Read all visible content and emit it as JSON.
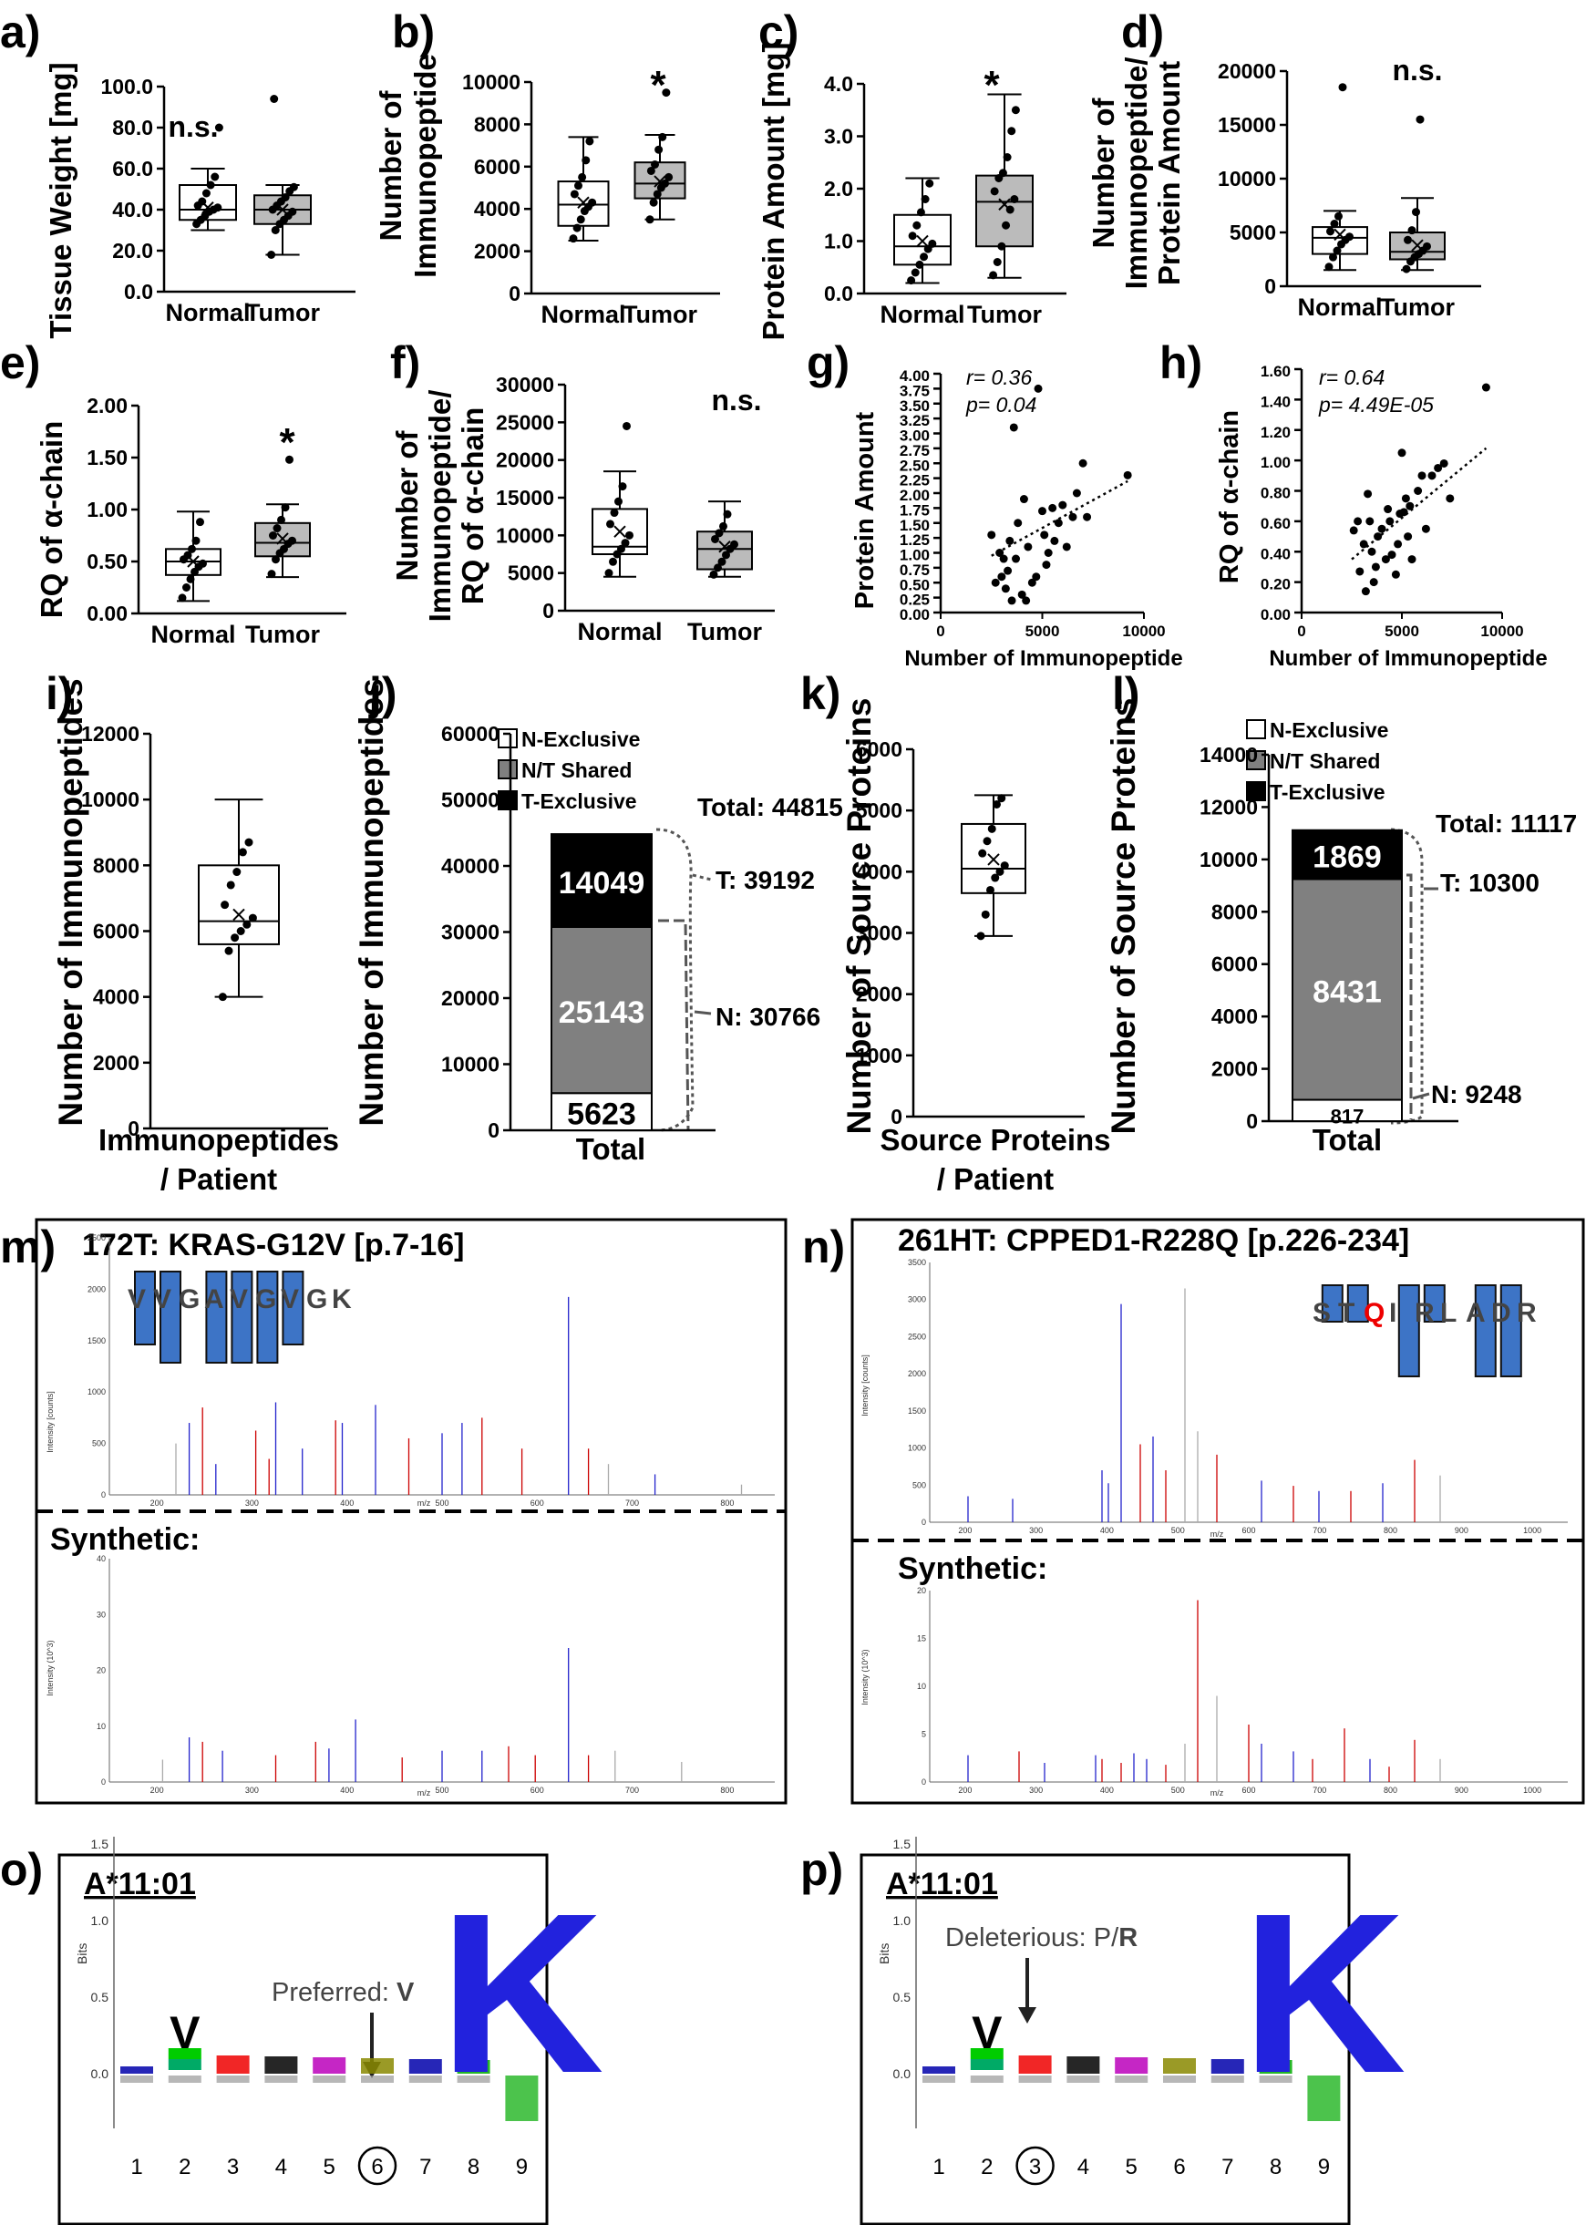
{
  "panels": {
    "a": {
      "label": "a)",
      "ylabel": "Tissue Weight [mg]",
      "ticks": [
        "0.0",
        "20.0",
        "40.0",
        "60.0",
        "80.0",
        "100.0"
      ],
      "cats": [
        "Normal",
        "Tumor"
      ],
      "sig": "n.s."
    },
    "b": {
      "label": "b)",
      "ylabel1": "Number of",
      "ylabel2": "Immunopeptide",
      "ticks": [
        "0",
        "2000",
        "4000",
        "6000",
        "8000",
        "10000"
      ],
      "cats": [
        "Normal",
        "Tumor"
      ],
      "sig": "*"
    },
    "c": {
      "label": "c)",
      "ylabel": "Protein Amount [mg]",
      "ticks": [
        "0.0",
        "1.0",
        "2.0",
        "3.0",
        "4.0"
      ],
      "cats": [
        "Normal",
        "Tumor"
      ],
      "sig": "*"
    },
    "d": {
      "label": "d)",
      "ylabel1": "Number of",
      "ylabel2": "Immunopeptide/",
      "ylabel3": "Protein Amount",
      "ticks": [
        "0",
        "5000",
        "10000",
        "15000",
        "20000"
      ],
      "cats": [
        "Normal",
        "Tumor"
      ],
      "sig": "n.s."
    },
    "e": {
      "label": "e)",
      "ylabel": "RQ of α-chain",
      "ticks": [
        "0.00",
        "0.50",
        "1.00",
        "1.50",
        "2.00"
      ],
      "cats": [
        "Normal",
        "Tumor"
      ],
      "sig": "*"
    },
    "f": {
      "label": "f)",
      "ylabel1": "Number of",
      "ylabel2": "Immunopeptide/",
      "ylabel3": "RQ of α-chain",
      "ticks": [
        "0",
        "5000",
        "10000",
        "15000",
        "20000",
        "25000",
        "30000"
      ],
      "cats": [
        "Normal",
        "Tumor"
      ],
      "sig": "n.s."
    },
    "g": {
      "label": "g)",
      "ylabel": "Protein Amount",
      "xlabel": "Number of Immunopeptide",
      "yticks": [
        "0.00",
        "0.25",
        "0.50",
        "0.75",
        "1.00",
        "1.25",
        "1.50",
        "1.75",
        "2.00",
        "2.25",
        "2.50",
        "2.75",
        "3.00",
        "3.25",
        "3.50",
        "3.75",
        "4.00"
      ],
      "xticks": [
        "0",
        "5000",
        "10000"
      ],
      "r": "r= 0.36",
      "p": "p= 0.04"
    },
    "h": {
      "label": "h)",
      "ylabel": "RQ of α-chain",
      "xlabel": "Number of Immunopeptide",
      "yticks": [
        "0.00",
        "0.20",
        "0.40",
        "0.60",
        "0.80",
        "1.00",
        "1.20",
        "1.40",
        "1.60"
      ],
      "xticks": [
        "0",
        "5000",
        "10000"
      ],
      "r": "r= 0.64",
      "p": "p= 4.49E-05"
    },
    "i": {
      "label": "i)",
      "ylabel": "Number of Immunopeptides",
      "ticks": [
        "0",
        "2000",
        "4000",
        "6000",
        "8000",
        "10000",
        "12000"
      ],
      "xlabel1": "Immunopeptides",
      "xlabel2": "/ Patient"
    },
    "j": {
      "label": "j)",
      "ylabel": "Number of Immunopeptides",
      "ticks": [
        "0",
        "10000",
        "20000",
        "30000",
        "40000",
        "50000",
        "60000"
      ],
      "xlabel": "Total",
      "legend": [
        "N-Exclusive",
        "N/T Shared",
        "T-Exclusive"
      ],
      "seg": [
        "5623",
        "25143",
        "14049"
      ],
      "total": "Total: 44815",
      "t": "T: 39192",
      "n": "N: 30766"
    },
    "k": {
      "label": "k)",
      "ylabel": "Number of Source Proteins",
      "ticks": [
        "0",
        "1000",
        "2000",
        "3000",
        "4000",
        "5000",
        "6000"
      ],
      "xlabel1": "Source Proteins",
      "xlabel2": "/ Patient"
    },
    "l": {
      "label": "l)",
      "ylabel": "Number of Source Proteins",
      "ticks": [
        "0",
        "2000",
        "4000",
        "6000",
        "8000",
        "10000",
        "12000",
        "14000"
      ],
      "xlabel": "Total",
      "legend": [
        "N-Exclusive",
        "N/T Shared",
        "T-Exclusive"
      ],
      "seg": [
        "817",
        "8431",
        "1869"
      ],
      "total": "Total: 11117",
      "t": "T: 10300",
      "n": "N: 9248"
    },
    "m": {
      "label": "m)",
      "title": "172T: KRAS-G12V [p.7-16]",
      "synthetic": "Synthetic:",
      "seq": [
        "V",
        "V",
        "G",
        "A",
        "V",
        "G",
        "V",
        "G",
        "K"
      ],
      "yaxis": "Intensity [counts]",
      "yaxis2": "Intensity (10^3)",
      "xaxis": "m/z",
      "yticks": [
        "0",
        "500",
        "1000",
        "1500",
        "2000",
        "2500"
      ],
      "yticks2": [
        "0",
        "10",
        "20",
        "30",
        "40"
      ],
      "xticks": [
        "200",
        "300",
        "400",
        "500",
        "600",
        "700",
        "800"
      ]
    },
    "n": {
      "label": "n)",
      "title": "261HT: CPPED1-R228Q [p.226-234]",
      "synthetic": "Synthetic:",
      "seq": [
        "S",
        "T",
        "Q",
        "I",
        "R",
        "L",
        "A",
        "D",
        "R"
      ],
      "yaxis": "Intensity [counts]",
      "yaxis2": "Intensity (10^3)",
      "xaxis": "m/z",
      "yticks": [
        "0",
        "500",
        "1000",
        "1500",
        "2000",
        "2500",
        "3000",
        "3500"
      ],
      "yticks2": [
        "0",
        "5",
        "10",
        "15",
        "20"
      ],
      "xticks": [
        "200",
        "300",
        "400",
        "500",
        "600",
        "700",
        "800",
        "900",
        "1000"
      ]
    },
    "o": {
      "label": "o)",
      "title": "A*11:01",
      "annot": "Preferred: ",
      "annotBold": "V",
      "ylabel": "Bits",
      "yticks": [
        "0.0",
        "0.5",
        "1.0",
        "1.5"
      ],
      "positions": [
        "1",
        "2",
        "3",
        "4",
        "5",
        "6",
        "7",
        "8",
        "9"
      ],
      "circled": "6"
    },
    "p": {
      "label": "p)",
      "title": "A*11:01",
      "annot": "Deleterious: P/",
      "annotBold": "R",
      "ylabel": "Bits",
      "yticks": [
        "0.0",
        "0.5",
        "1.0",
        "1.5"
      ],
      "positions": [
        "1",
        "2",
        "3",
        "4",
        "5",
        "6",
        "7",
        "8",
        "9"
      ],
      "circled": "3"
    }
  },
  "chart_data": [
    {
      "id": "a",
      "type": "box",
      "ylabel": "Tissue Weight [mg]",
      "categories": [
        "Normal",
        "Tumor"
      ],
      "ylim": [
        0,
        100
      ],
      "boxes": [
        {
          "min": 30,
          "q1": 35,
          "median": 40,
          "q3": 52,
          "max": 60,
          "mean": 41
        },
        {
          "min": 18,
          "q1": 33,
          "median": 40,
          "q3": 47,
          "max": 52,
          "mean": 40
        }
      ],
      "points": [
        [
          33,
          35,
          37,
          39,
          40,
          41,
          42,
          44,
          48,
          52,
          56,
          80
        ],
        [
          18,
          30,
          33,
          35,
          37,
          39,
          40,
          42,
          44,
          46,
          49,
          51,
          94
        ]
      ]
    },
    {
      "id": "b",
      "type": "box",
      "ylabel": "Number of Immunopeptide",
      "categories": [
        "Normal",
        "Tumor"
      ],
      "ylim": [
        0,
        10000
      ],
      "boxes": [
        {
          "min": 2500,
          "q1": 3200,
          "median": 4200,
          "q3": 5300,
          "max": 7400,
          "mean": 4300
        },
        {
          "min": 3500,
          "q1": 4500,
          "median": 5200,
          "q3": 6200,
          "max": 7500,
          "mean": 5300
        }
      ],
      "points": [
        [
          2600,
          3100,
          3500,
          3900,
          4100,
          4300,
          4700,
          5100,
          5500,
          6300,
          7200
        ],
        [
          3500,
          4300,
          4700,
          5000,
          5200,
          5500,
          5800,
          6100,
          6800,
          7400,
          9500
        ]
      ]
    },
    {
      "id": "c",
      "type": "box",
      "ylabel": "Protein Amount [mg]",
      "categories": [
        "Normal",
        "Tumor"
      ],
      "ylim": [
        0,
        4
      ],
      "boxes": [
        {
          "min": 0.2,
          "q1": 0.55,
          "median": 0.9,
          "q3": 1.5,
          "max": 2.2,
          "mean": 1.0
        },
        {
          "min": 0.3,
          "q1": 0.9,
          "median": 1.75,
          "q3": 2.25,
          "max": 3.8,
          "mean": 1.7
        }
      ],
      "points": [
        [
          0.25,
          0.4,
          0.55,
          0.7,
          0.85,
          0.95,
          1.1,
          1.3,
          1.55,
          1.8,
          2.1
        ],
        [
          0.35,
          0.6,
          0.9,
          1.3,
          1.6,
          1.8,
          1.95,
          2.2,
          2.3,
          2.6,
          3.1,
          3.5
        ]
      ]
    },
    {
      "id": "d",
      "type": "box",
      "ylabel": "Number of Immunopeptide/ Protein Amount",
      "categories": [
        "Normal",
        "Tumor"
      ],
      "ylim": [
        0,
        20000
      ],
      "boxes": [
        {
          "min": 1500,
          "q1": 3000,
          "median": 4500,
          "q3": 5500,
          "max": 7000,
          "mean": 4800
        },
        {
          "min": 1500,
          "q1": 2500,
          "median": 3200,
          "q3": 5000,
          "max": 8200,
          "mean": 3800
        }
      ],
      "points": [
        [
          1800,
          2700,
          3300,
          3900,
          4300,
          4600,
          5100,
          5800,
          6500,
          18500
        ],
        [
          1600,
          2300,
          2700,
          3000,
          3300,
          3700,
          4300,
          5200,
          6900,
          15500
        ]
      ]
    },
    {
      "id": "e",
      "type": "box",
      "ylabel": "RQ of α-chain",
      "categories": [
        "Normal",
        "Tumor"
      ],
      "ylim": [
        0,
        2
      ],
      "boxes": [
        {
          "min": 0.12,
          "q1": 0.37,
          "median": 0.5,
          "q3": 0.62,
          "max": 0.98,
          "mean": 0.5
        },
        {
          "min": 0.35,
          "q1": 0.55,
          "median": 0.68,
          "q3": 0.87,
          "max": 1.05,
          "mean": 0.72
        }
      ],
      "points": [
        [
          0.15,
          0.25,
          0.33,
          0.4,
          0.45,
          0.48,
          0.52,
          0.56,
          0.62,
          0.7,
          0.88
        ],
        [
          0.38,
          0.52,
          0.58,
          0.62,
          0.67,
          0.7,
          0.75,
          0.82,
          0.9,
          1.02,
          1.48
        ]
      ]
    },
    {
      "id": "f",
      "type": "box",
      "ylabel": "Number of Immunopeptide/ RQ of α-chain",
      "categories": [
        "Normal",
        "Tumor"
      ],
      "ylim": [
        0,
        30000
      ],
      "boxes": [
        {
          "min": 4500,
          "q1": 7500,
          "median": 8500,
          "q3": 13500,
          "max": 18500,
          "mean": 10500
        },
        {
          "min": 4500,
          "q1": 5500,
          "median": 8200,
          "q3": 10500,
          "max": 14500,
          "mean": 8500
        }
      ],
      "points": [
        [
          5000,
          6500,
          7500,
          8200,
          9000,
          10000,
          11500,
          13000,
          14500,
          16500,
          24500
        ],
        [
          4800,
          5700,
          6500,
          7400,
          8200,
          8800,
          9500,
          10300,
          11200,
          12800
        ]
      ]
    },
    {
      "id": "g",
      "type": "scatter",
      "xlabel": "Number of Immunopeptide",
      "ylabel": "Protein Amount",
      "xlim": [
        0,
        10000
      ],
      "ylim": [
        0,
        4
      ],
      "points": [
        [
          2500,
          1.3
        ],
        [
          2700,
          0.5
        ],
        [
          2900,
          1.0
        ],
        [
          3000,
          0.6
        ],
        [
          3100,
          0.9
        ],
        [
          3200,
          0.4
        ],
        [
          3300,
          0.7
        ],
        [
          3400,
          1.2
        ],
        [
          3500,
          0.2
        ],
        [
          3600,
          3.1
        ],
        [
          3700,
          0.9
        ],
        [
          3800,
          1.5
        ],
        [
          4000,
          0.3
        ],
        [
          4100,
          1.9
        ],
        [
          4200,
          0.2
        ],
        [
          4300,
          1.1
        ],
        [
          4500,
          0.5
        ],
        [
          4700,
          0.6
        ],
        [
          4800,
          3.75
        ],
        [
          5000,
          1.7
        ],
        [
          5100,
          1.3
        ],
        [
          5200,
          0.8
        ],
        [
          5300,
          1.0
        ],
        [
          5500,
          1.75
        ],
        [
          5600,
          1.2
        ],
        [
          5800,
          1.5
        ],
        [
          6000,
          1.8
        ],
        [
          6200,
          1.1
        ],
        [
          6500,
          1.6
        ],
        [
          6700,
          2.0
        ],
        [
          7000,
          2.5
        ],
        [
          7200,
          1.6
        ],
        [
          9200,
          2.3
        ]
      ],
      "trend": {
        "x": [
          2500,
          9200
        ],
        "y": [
          0.95,
          2.2
        ]
      }
    },
    {
      "id": "h",
      "type": "scatter",
      "xlabel": "Number of Immunopeptide",
      "ylabel": "RQ of α-chain",
      "xlim": [
        0,
        10000
      ],
      "ylim": [
        0,
        1.6
      ],
      "points": [
        [
          2600,
          0.54
        ],
        [
          2800,
          0.6
        ],
        [
          2900,
          0.27
        ],
        [
          3100,
          0.45
        ],
        [
          3200,
          0.14
        ],
        [
          3300,
          0.78
        ],
        [
          3400,
          0.6
        ],
        [
          3500,
          0.4
        ],
        [
          3600,
          0.2
        ],
        [
          3700,
          0.3
        ],
        [
          3800,
          0.5
        ],
        [
          4000,
          0.55
        ],
        [
          4200,
          0.35
        ],
        [
          4300,
          0.68
        ],
        [
          4400,
          0.6
        ],
        [
          4500,
          0.38
        ],
        [
          4700,
          0.25
        ],
        [
          4800,
          0.45
        ],
        [
          4900,
          0.65
        ],
        [
          5000,
          1.05
        ],
        [
          5100,
          0.66
        ],
        [
          5200,
          0.75
        ],
        [
          5300,
          0.5
        ],
        [
          5400,
          0.7
        ],
        [
          5500,
          0.35
        ],
        [
          5800,
          0.8
        ],
        [
          6000,
          0.9
        ],
        [
          6200,
          0.55
        ],
        [
          6500,
          0.9
        ],
        [
          6800,
          0.95
        ],
        [
          7100,
          0.98
        ],
        [
          7400,
          0.75
        ],
        [
          9200,
          1.48
        ]
      ],
      "trend": {
        "x": [
          2500,
          9200
        ],
        "y": [
          0.35,
          1.08
        ]
      }
    },
    {
      "id": "i",
      "type": "box",
      "ylabel": "Number of Immunopeptides",
      "categories": [
        "Immunopeptides / Patient"
      ],
      "ylim": [
        0,
        12000
      ],
      "boxes": [
        {
          "min": 4000,
          "q1": 5600,
          "median": 6300,
          "q3": 8000,
          "max": 10000,
          "mean": 6500
        }
      ],
      "points": [
        [
          4000,
          5400,
          5800,
          6000,
          6200,
          6400,
          6800,
          7400,
          7800,
          8400,
          8700
        ]
      ]
    },
    {
      "id": "j",
      "type": "bar",
      "stacked": true,
      "ylabel": "Number of Immunopeptides",
      "categories": [
        "Total"
      ],
      "ylim": [
        0,
        60000
      ],
      "series": [
        {
          "name": "N-Exclusive",
          "values": [
            5623
          ]
        },
        {
          "name": "N/T Shared",
          "values": [
            25143
          ]
        },
        {
          "name": "T-Exclusive",
          "values": [
            14049
          ]
        }
      ]
    },
    {
      "id": "k",
      "type": "box",
      "ylabel": "Number of Source Proteins",
      "categories": [
        "Source Proteins / Patient"
      ],
      "ylim": [
        0,
        6000
      ],
      "boxes": [
        {
          "min": 2950,
          "q1": 3650,
          "median": 4050,
          "q3": 4780,
          "max": 5250,
          "mean": 4200
        }
      ],
      "points": [
        [
          2950,
          3300,
          3700,
          3900,
          4000,
          4100,
          4300,
          4500,
          4700,
          5100,
          5200
        ]
      ]
    },
    {
      "id": "l",
      "type": "bar",
      "stacked": true,
      "ylabel": "Number of Source Proteins",
      "categories": [
        "Total"
      ],
      "ylim": [
        0,
        14000
      ],
      "series": [
        {
          "name": "N-Exclusive",
          "values": [
            817
          ]
        },
        {
          "name": "N/T Shared",
          "values": [
            8431
          ]
        },
        {
          "name": "T-Exclusive",
          "values": [
            1869
          ]
        }
      ]
    }
  ]
}
